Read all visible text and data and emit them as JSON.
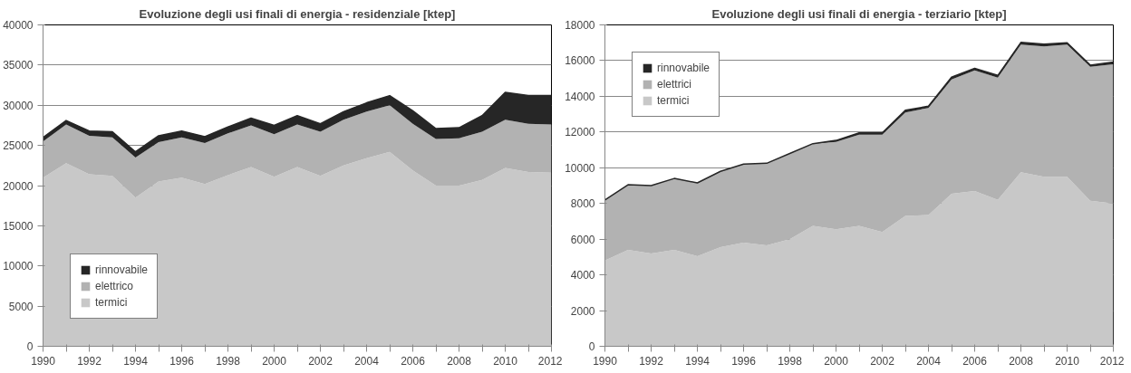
{
  "chart_data": [
    {
      "type": "area",
      "stacked": true,
      "title": "Evoluzione degli usi finali di energia - residenziale [ktep]",
      "x": [
        1990,
        1991,
        1992,
        1993,
        1994,
        1995,
        1996,
        1997,
        1998,
        1999,
        2000,
        2001,
        2002,
        2003,
        2004,
        2005,
        2006,
        2007,
        2008,
        2009,
        2010,
        2011,
        2012
      ],
      "series": [
        {
          "name": "termici",
          "color": "#c8c8c8",
          "values": [
            21000,
            22800,
            21400,
            21200,
            18500,
            20500,
            21000,
            20200,
            21300,
            22300,
            21100,
            22300,
            21200,
            22500,
            23400,
            24200,
            21900,
            20000,
            20000,
            20700,
            22200,
            21700,
            21600
          ]
        },
        {
          "name": "elettrico",
          "color": "#b2b2b2",
          "values": [
            4500,
            4800,
            4800,
            4800,
            5000,
            4900,
            5000,
            5100,
            5200,
            5200,
            5300,
            5300,
            5500,
            5700,
            5800,
            5800,
            5800,
            5800,
            5900,
            6000,
            6000,
            6000,
            6000
          ]
        },
        {
          "name": "rinnovabile",
          "color": "#262626",
          "values": [
            500,
            500,
            600,
            700,
            700,
            800,
            800,
            800,
            800,
            900,
            1100,
            1100,
            1000,
            1000,
            1100,
            1200,
            1600,
            1300,
            1300,
            2000,
            3400,
            3500,
            3600
          ]
        }
      ],
      "xlim": [
        1990,
        2012
      ],
      "xticks": [
        1990,
        {
          "value": 1991,
          "label": null
        },
        1992,
        {
          "value": 1993,
          "label": null
        },
        1994,
        {
          "value": 1995,
          "label": null
        },
        1996,
        {
          "value": 1997,
          "label": null
        },
        1998,
        {
          "value": 1999,
          "label": null
        },
        2000,
        {
          "value": 2001,
          "label": null
        },
        2002,
        {
          "value": 2003,
          "label": null
        },
        2004,
        {
          "value": 2005,
          "label": null
        },
        2006,
        {
          "value": 2007,
          "label": null
        },
        2008,
        {
          "value": 2009,
          "label": null
        },
        2010,
        {
          "value": 2011,
          "label": null
        },
        2012
      ],
      "ylim": [
        0,
        40000
      ],
      "yticks": [
        0,
        5000,
        10000,
        15000,
        20000,
        25000,
        30000,
        35000,
        40000
      ],
      "grid": "y",
      "legend": "bottom left"
    },
    {
      "type": "area",
      "stacked": true,
      "title": "Evoluzione degli usi finali di energia - terziario [ktep]",
      "x": [
        1990,
        1991,
        1992,
        1993,
        1994,
        1995,
        1996,
        1997,
        1998,
        1999,
        2000,
        2001,
        2002,
        2003,
        2004,
        2005,
        2006,
        2007,
        2008,
        2009,
        2010,
        2011,
        2012
      ],
      "series": [
        {
          "name": "termici",
          "color": "#c8c8c8",
          "values": [
            4800,
            5400,
            5200,
            5400,
            5050,
            5550,
            5800,
            5650,
            6000,
            6750,
            6550,
            6750,
            6400,
            7300,
            7350,
            8550,
            8700,
            8200,
            9750,
            9500,
            9500,
            8150,
            8000
          ]
        },
        {
          "name": "elettrici",
          "color": "#b2b2b2",
          "values": [
            3400,
            3650,
            3800,
            4000,
            4100,
            4250,
            4400,
            4600,
            4800,
            4600,
            4900,
            5100,
            5450,
            5800,
            6000,
            6400,
            6750,
            6850,
            7150,
            7300,
            7400,
            7500,
            7800
          ]
        },
        {
          "name": "rinnovabile",
          "color": "#262626",
          "values": [
            0,
            0,
            0,
            0,
            0,
            0,
            0,
            0,
            0,
            0,
            80,
            100,
            100,
            120,
            100,
            120,
            120,
            120,
            120,
            120,
            100,
            100,
            120
          ]
        }
      ],
      "xlim": [
        1990,
        2012
      ],
      "xticks": [
        1990,
        {
          "value": 1991,
          "label": null
        },
        1992,
        {
          "value": 1993,
          "label": null
        },
        1994,
        {
          "value": 1995,
          "label": null
        },
        1996,
        {
          "value": 1997,
          "label": null
        },
        1998,
        {
          "value": 1999,
          "label": null
        },
        2000,
        {
          "value": 2001,
          "label": null
        },
        2002,
        {
          "value": 2003,
          "label": null
        },
        2004,
        {
          "value": 2005,
          "label": null
        },
        2006,
        {
          "value": 2007,
          "label": null
        },
        2008,
        {
          "value": 2009,
          "label": null
        },
        2010,
        {
          "value": 2011,
          "label": null
        },
        2012
      ],
      "ylim": [
        0,
        18000
      ],
      "yticks": [
        0,
        2000,
        4000,
        6000,
        8000,
        10000,
        12000,
        14000,
        16000,
        18000
      ],
      "grid": "y",
      "legend": "top left"
    }
  ]
}
